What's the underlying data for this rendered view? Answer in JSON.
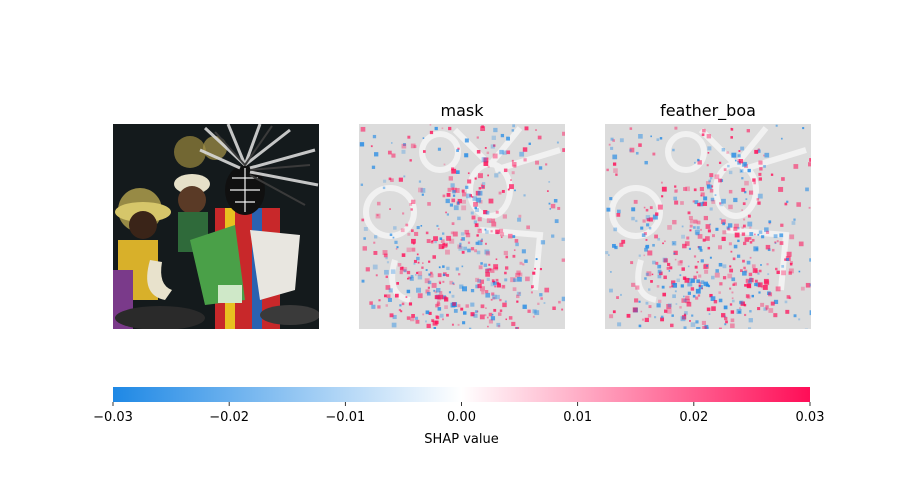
{
  "chart_data": {
    "type": "heatmap",
    "panels": [
      {
        "title": "",
        "kind": "input-image"
      },
      {
        "title": "mask",
        "kind": "shap-overlay"
      },
      {
        "title": "feather_boa",
        "kind": "shap-overlay"
      }
    ],
    "colorbar": {
      "label": "SHAP value",
      "range": [
        -0.03,
        0.03
      ],
      "ticks": [
        -0.03,
        -0.02,
        -0.01,
        0.0,
        0.01,
        0.02,
        0.03
      ],
      "tick_labels": [
        "−0.03",
        "−0.02",
        "−0.01",
        "0.00",
        "0.01",
        "0.02",
        "0.03"
      ],
      "color_negative": "#1e88e5",
      "color_positive": "#ff0d57"
    }
  }
}
